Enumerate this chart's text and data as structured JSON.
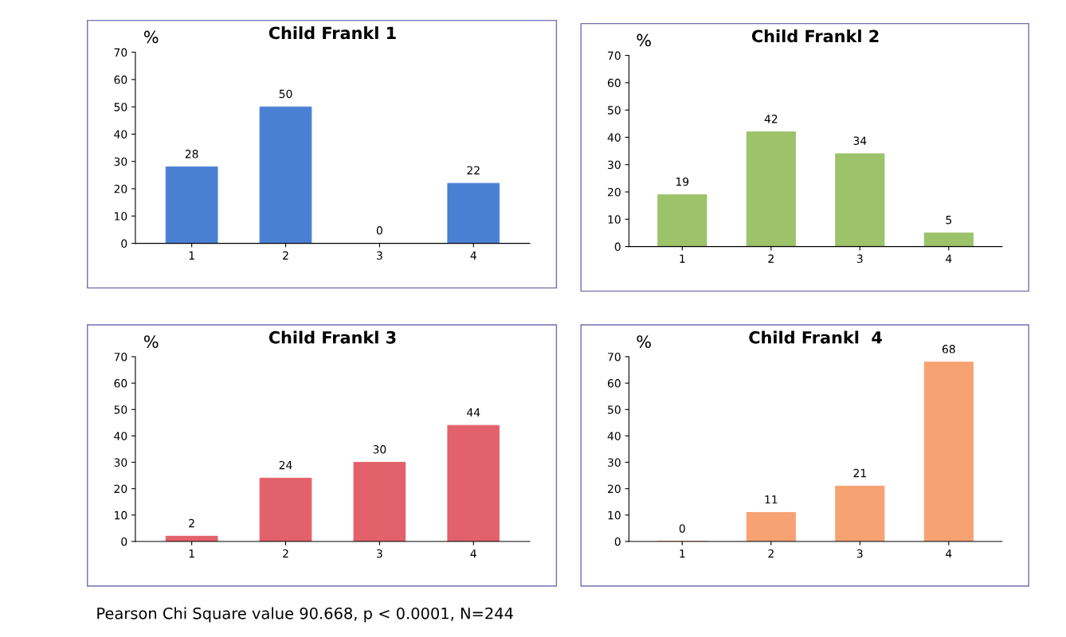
{
  "chart_data": [
    {
      "type": "bar",
      "title": "Child Frankl 1",
      "ylabel": "%",
      "categories": [
        "1",
        "2",
        "3",
        "4"
      ],
      "values": [
        28,
        50,
        0,
        22
      ],
      "color": "#4a80d4",
      "ylim": [
        0,
        70
      ],
      "yticks": [
        0,
        10,
        20,
        30,
        40,
        50,
        60,
        70
      ],
      "data_labels": true,
      "grid": false,
      "legend": false
    },
    {
      "type": "bar",
      "title": "Child Frankl 2",
      "ylabel": "%",
      "categories": [
        "1",
        "2",
        "3",
        "4"
      ],
      "values": [
        19,
        42,
        34,
        5
      ],
      "color": "#9cc26a",
      "ylim": [
        0,
        70
      ],
      "yticks": [
        0,
        10,
        20,
        30,
        40,
        50,
        60,
        70
      ],
      "data_labels": true,
      "grid": false,
      "legend": false
    },
    {
      "type": "bar",
      "title": "Child Frankl 3",
      "ylabel": "%",
      "categories": [
        "1",
        "2",
        "3",
        "4"
      ],
      "values": [
        2,
        24,
        30,
        44
      ],
      "color": "#e3616a",
      "ylim": [
        0,
        70
      ],
      "yticks": [
        0,
        10,
        20,
        30,
        40,
        50,
        60,
        70
      ],
      "data_labels": true,
      "grid": false,
      "legend": false
    },
    {
      "type": "bar",
      "title": "Child Frankl  4",
      "ylabel": "%",
      "categories": [
        "1",
        "2",
        "3",
        "4"
      ],
      "values": [
        0,
        11,
        21,
        68
      ],
      "color": "#f7a273",
      "ylim": [
        0,
        70
      ],
      "yticks": [
        0,
        10,
        20,
        30,
        40,
        50,
        60,
        70
      ],
      "data_labels": true,
      "grid": false,
      "legend": false,
      "annotations": [
        "Pearson Chi Square value 90.668, p < 0.0001, N=244"
      ]
    }
  ]
}
